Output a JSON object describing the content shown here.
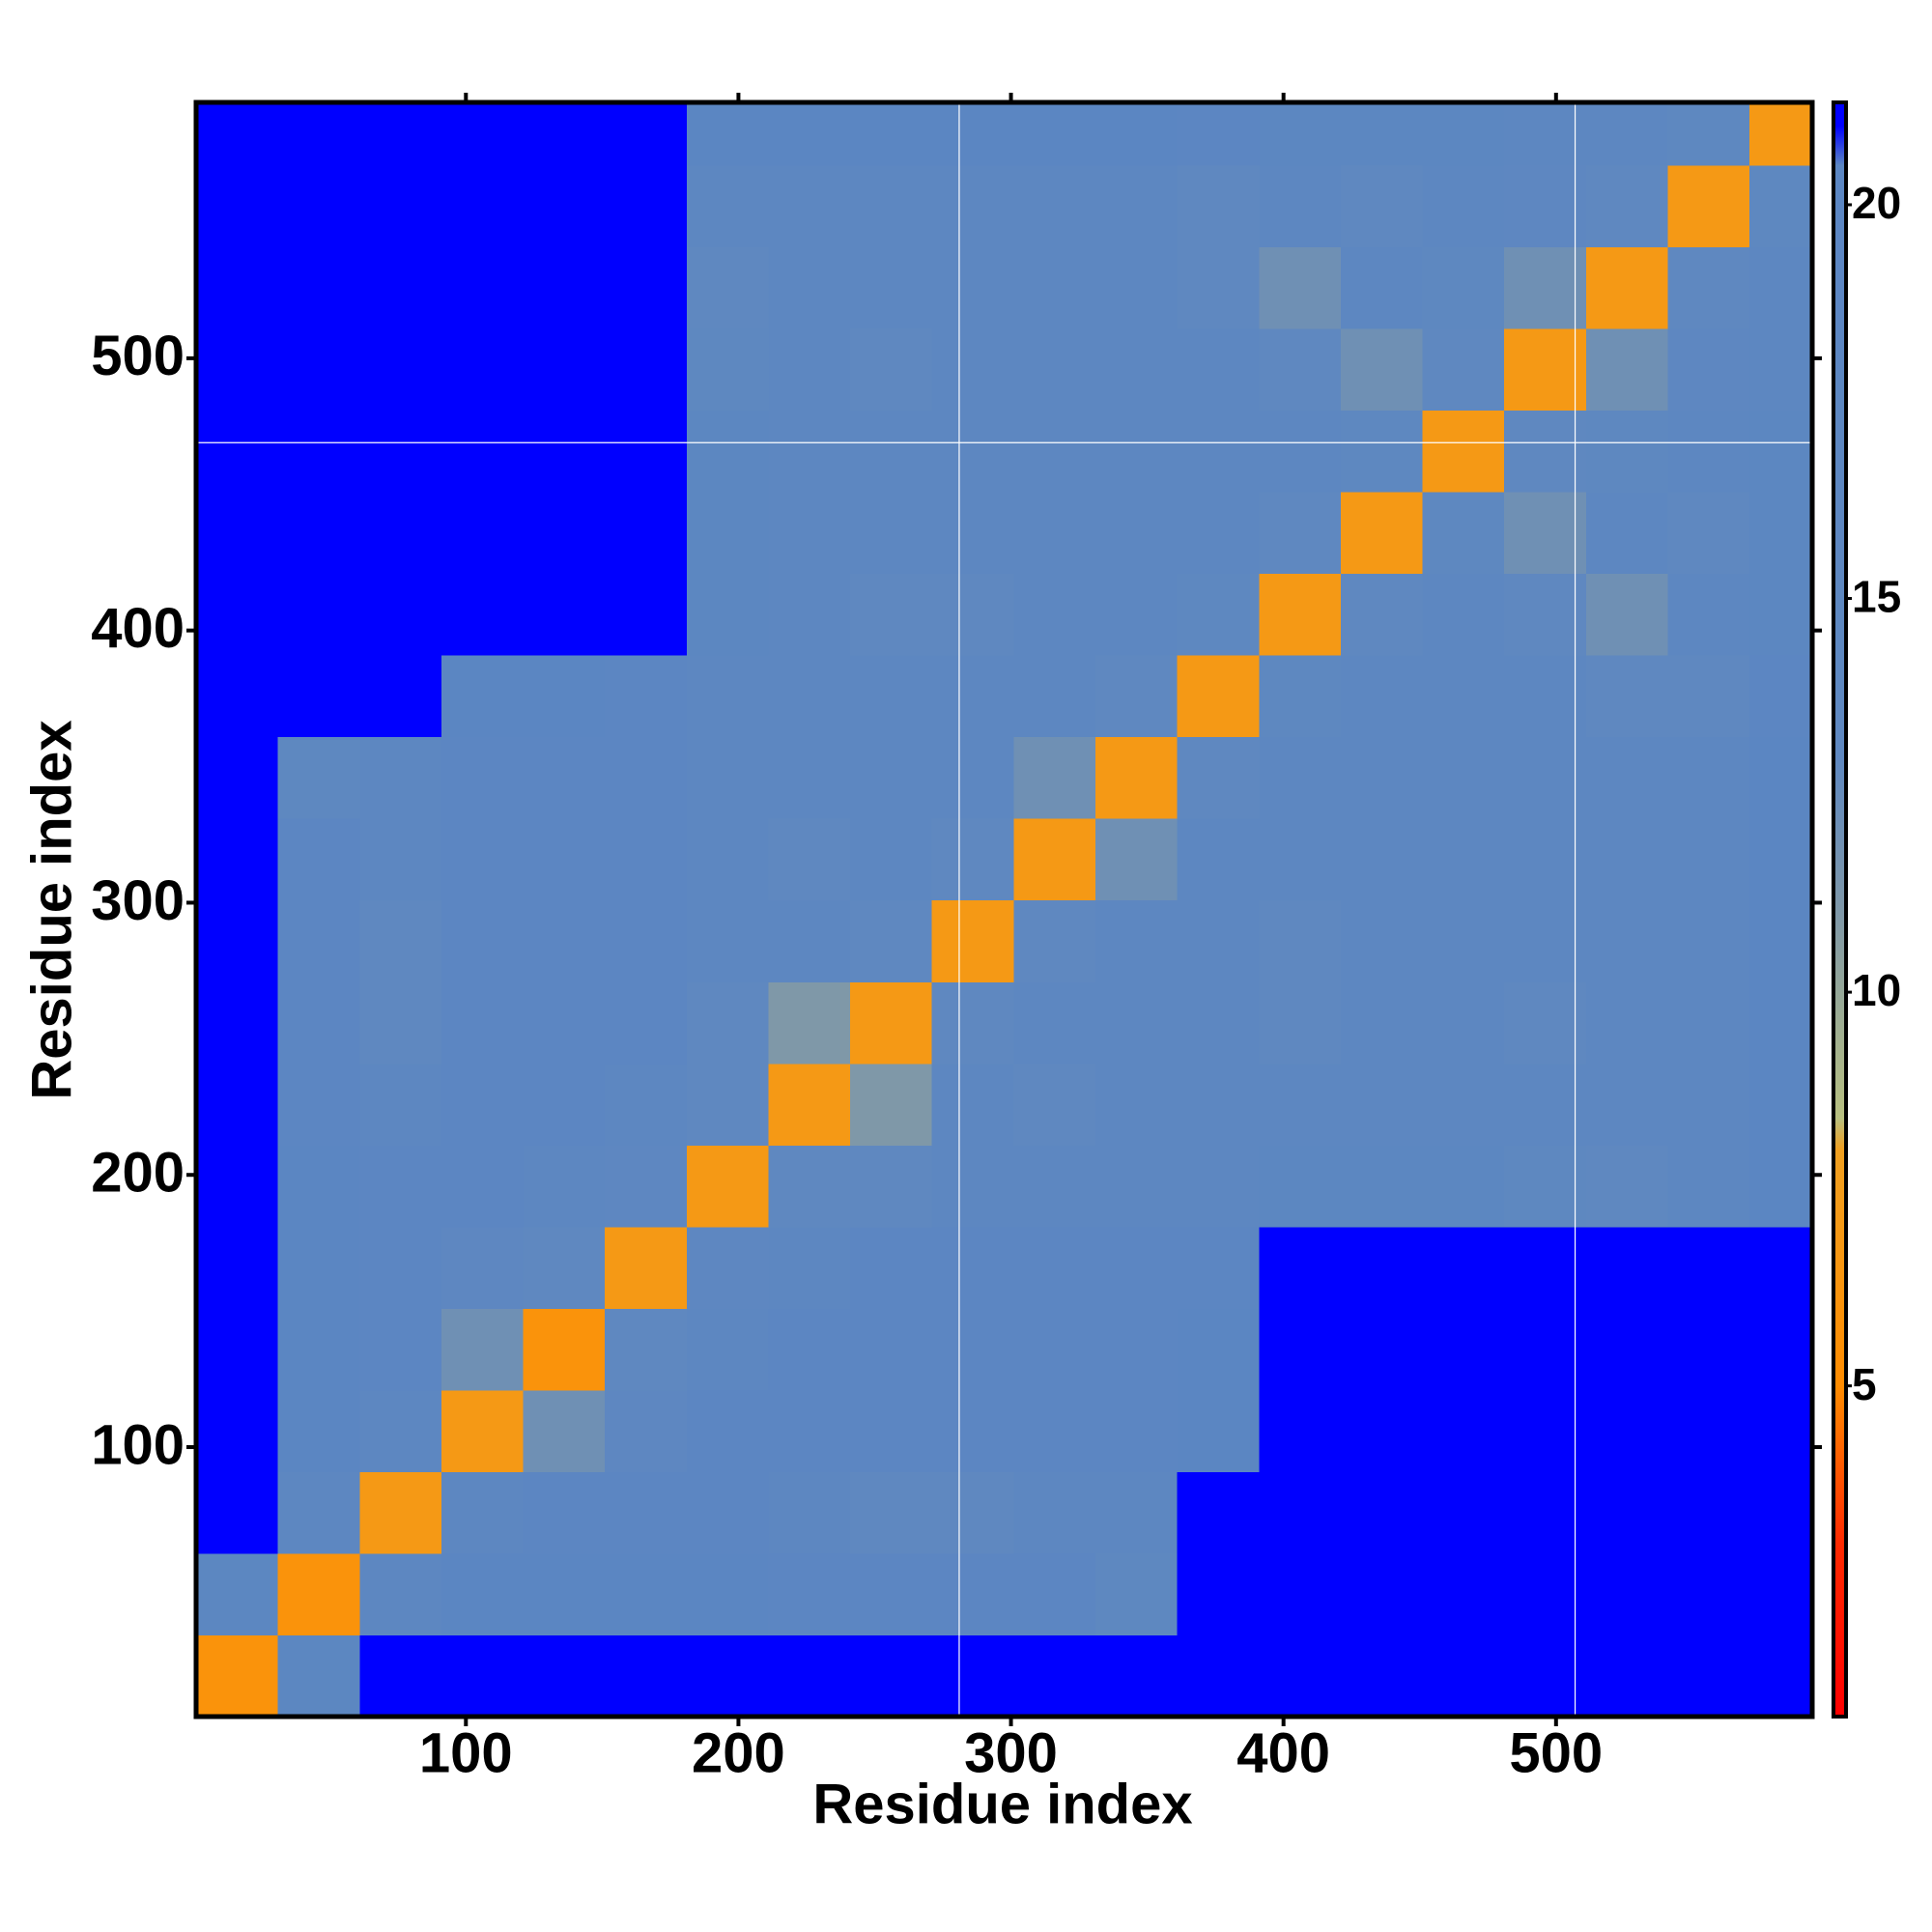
{
  "chart_data": {
    "type": "heatmap",
    "x_label": "Residue index",
    "y_label": "Residue index",
    "xlim": [
      1,
      594
    ],
    "ylim": [
      1,
      594
    ],
    "xticks": [
      100,
      200,
      300,
      400,
      500
    ],
    "yticks": [
      100,
      200,
      300,
      400,
      500
    ],
    "xbins": [
      1,
      31,
      61,
      91,
      121,
      151,
      181,
      211,
      241,
      271,
      301,
      331,
      361,
      391,
      421,
      451,
      481,
      511,
      541,
      571,
      594
    ],
    "ybins": [
      1,
      31,
      61,
      91,
      121,
      151,
      181,
      211,
      241,
      271,
      301,
      331,
      361,
      391,
      421,
      451,
      481,
      511,
      541,
      571,
      594
    ],
    "values": [
      [
        6,
        18,
        21,
        21,
        21,
        21,
        21,
        21,
        21,
        21,
        21,
        21,
        21,
        21,
        21,
        21,
        21,
        21,
        21,
        21
      ],
      [
        18,
        6,
        17,
        20,
        20,
        20,
        20,
        19,
        19,
        19,
        19,
        14,
        21,
        21,
        21,
        21,
        21,
        21,
        21,
        21
      ],
      [
        21,
        17,
        7,
        16,
        19,
        19,
        19,
        16,
        13,
        13,
        16,
        17,
        21,
        21,
        21,
        21,
        21,
        21,
        21,
        21
      ],
      [
        21,
        20,
        16,
        7,
        12,
        15,
        19,
        19,
        19,
        19,
        19,
        19,
        20,
        21,
        21,
        21,
        21,
        21,
        21,
        21
      ],
      [
        21,
        20,
        19,
        12,
        6,
        13,
        17,
        19,
        19,
        19,
        19,
        19,
        20,
        21,
        21,
        21,
        21,
        21,
        21,
        21
      ],
      [
        21,
        20,
        19,
        15,
        13,
        7,
        15,
        17,
        19,
        19,
        19,
        19,
        19,
        21,
        21,
        21,
        21,
        21,
        21,
        21
      ],
      [
        21,
        20,
        19,
        19,
        17,
        15,
        7,
        13,
        13,
        17,
        17,
        17,
        17,
        18,
        18,
        18,
        14,
        13,
        17,
        20
      ],
      [
        21,
        19,
        16,
        19,
        19,
        17,
        13,
        7,
        11,
        16,
        13,
        17,
        17,
        17,
        17,
        17,
        17,
        16,
        17,
        20
      ],
      [
        21,
        19,
        13,
        19,
        19,
        19,
        13,
        11,
        7,
        13,
        16,
        16,
        16,
        13,
        17,
        17,
        13,
        16,
        17,
        20
      ],
      [
        21,
        19,
        13,
        19,
        19,
        19,
        17,
        16,
        13,
        7,
        13,
        16,
        17,
        13,
        17,
        17,
        17,
        17,
        17,
        20
      ],
      [
        21,
        19,
        16,
        19,
        19,
        19,
        17,
        13,
        16,
        13,
        7,
        12,
        16,
        17,
        17,
        17,
        17,
        17,
        17,
        20
      ],
      [
        21,
        14,
        17,
        19,
        19,
        19,
        17,
        17,
        16,
        16,
        12,
        7,
        13,
        17,
        17,
        17,
        17,
        17,
        17,
        20
      ],
      [
        21,
        21,
        21,
        20,
        20,
        19,
        17,
        17,
        16,
        17,
        16,
        13,
        7,
        14,
        16,
        16,
        16,
        13,
        13,
        19
      ],
      [
        21,
        21,
        21,
        21,
        21,
        21,
        18,
        17,
        13,
        13,
        17,
        17,
        14,
        7,
        13,
        16,
        13,
        12,
        16,
        18
      ],
      [
        21,
        21,
        21,
        21,
        21,
        21,
        18,
        17,
        17,
        17,
        17,
        17,
        16,
        13,
        7,
        14,
        12,
        16,
        13,
        18
      ],
      [
        21,
        21,
        21,
        21,
        21,
        21,
        18,
        17,
        17,
        17,
        17,
        17,
        16,
        16,
        14,
        7,
        13,
        14,
        16,
        18
      ],
      [
        21,
        21,
        21,
        21,
        21,
        21,
        14,
        17,
        13,
        17,
        17,
        17,
        16,
        13,
        12,
        13,
        7,
        12,
        15,
        17
      ],
      [
        21,
        21,
        21,
        21,
        21,
        21,
        13,
        16,
        16,
        17,
        17,
        17,
        13,
        12,
        16,
        14,
        12,
        7,
        13,
        16
      ],
      [
        21,
        21,
        21,
        21,
        21,
        21,
        17,
        17,
        17,
        17,
        17,
        17,
        13,
        16,
        13,
        16,
        15,
        13,
        7,
        14
      ],
      [
        21,
        21,
        21,
        21,
        21,
        21,
        20,
        20,
        20,
        20,
        20,
        20,
        19,
        18,
        18,
        18,
        17,
        16,
        14,
        7
      ]
    ],
    "colorscale": [
      [
        0.8,
        "#ff0000"
      ],
      [
        3,
        "#ff2a00"
      ],
      [
        5,
        "#ff8c00"
      ],
      [
        8,
        "#f0a020"
      ],
      [
        8.4,
        "#b8c080"
      ],
      [
        11,
        "#7f98a8"
      ],
      [
        13,
        "#5f88c0"
      ],
      [
        20.5,
        "#5b86c2"
      ],
      [
        21,
        "#0000ff"
      ],
      [
        21.3,
        "#0000ff"
      ]
    ],
    "colorbar": {
      "lim": [
        0.8,
        21.3
      ],
      "ticks": [
        5,
        10,
        15,
        20
      ]
    },
    "gap_lines_x": [
      281,
      507
    ],
    "gap_lines_y": [
      469
    ]
  }
}
